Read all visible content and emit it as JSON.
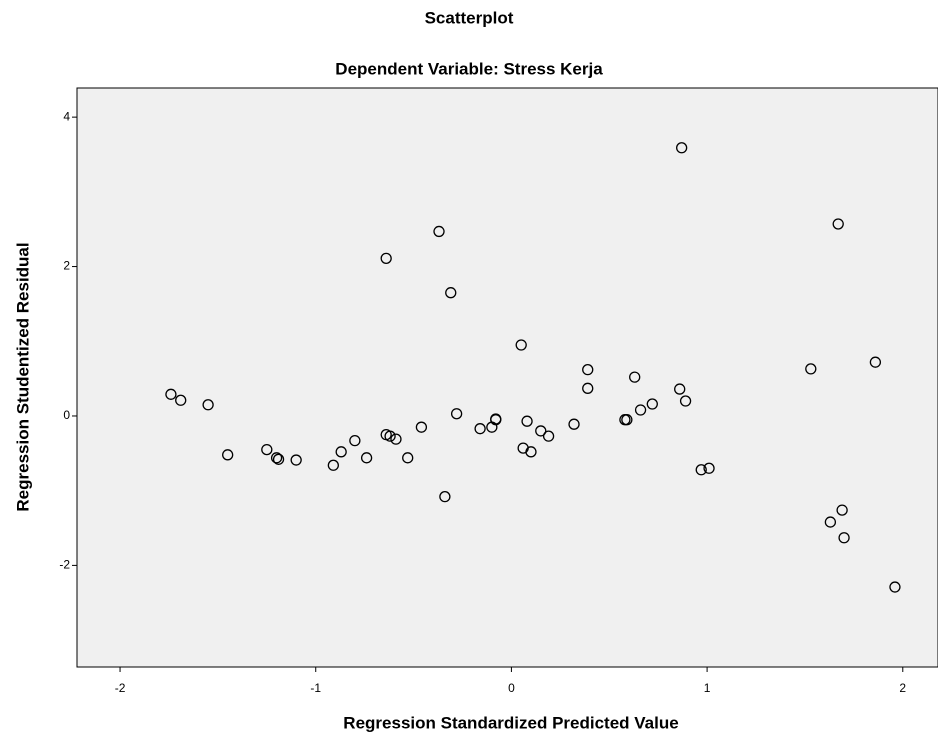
{
  "chart_data": {
    "type": "scatter",
    "title": "Scatterplot",
    "subtitle": "Dependent Variable: Stress Kerja",
    "x_label": "Regression Standardized Predicted Value",
    "y_label": "Regression Studentized Residual",
    "xlim": [
      -2.22,
      2.18
    ],
    "ylim": [
      -3.36,
      4.39
    ],
    "xticks": [
      -2,
      -1,
      0,
      1,
      2
    ],
    "yticks": [
      -2,
      0,
      2,
      4
    ],
    "grid": false,
    "color": "#000000",
    "x": [
      -1.74,
      -1.69,
      -1.55,
      -1.45,
      -1.25,
      -1.2,
      -1.19,
      -1.1,
      -0.91,
      -0.87,
      -0.8,
      -0.74,
      -0.64,
      -0.64,
      -0.62,
      -0.59,
      -0.53,
      -0.46,
      -0.37,
      -0.34,
      -0.31,
      -0.28,
      -0.16,
      -0.1,
      -0.08,
      -0.08,
      0.05,
      0.06,
      0.08,
      0.1,
      0.15,
      0.19,
      0.32,
      0.39,
      0.39,
      0.58,
      0.59,
      0.63,
      0.66,
      0.72,
      0.87,
      0.86,
      0.89,
      0.97,
      1.01,
      1.53,
      1.67,
      1.63,
      1.69,
      1.7,
      1.86,
      1.96
    ],
    "values": [
      0.29,
      0.21,
      0.15,
      -0.52,
      -0.45,
      -0.56,
      -0.58,
      -0.59,
      -0.66,
      -0.48,
      -0.33,
      -0.56,
      2.11,
      -0.25,
      -0.27,
      -0.31,
      -0.56,
      -0.15,
      2.47,
      -1.08,
      1.65,
      0.03,
      -0.17,
      -0.15,
      -0.05,
      -0.04,
      0.95,
      -0.43,
      -0.07,
      -0.48,
      -0.2,
      -0.27,
      -0.11,
      0.37,
      0.62,
      -0.05,
      -0.05,
      0.52,
      0.08,
      0.16,
      3.59,
      0.36,
      0.2,
      -0.72,
      -0.7,
      0.63,
      2.57,
      -1.42,
      -1.26,
      -1.63,
      0.72,
      -2.29
    ]
  }
}
